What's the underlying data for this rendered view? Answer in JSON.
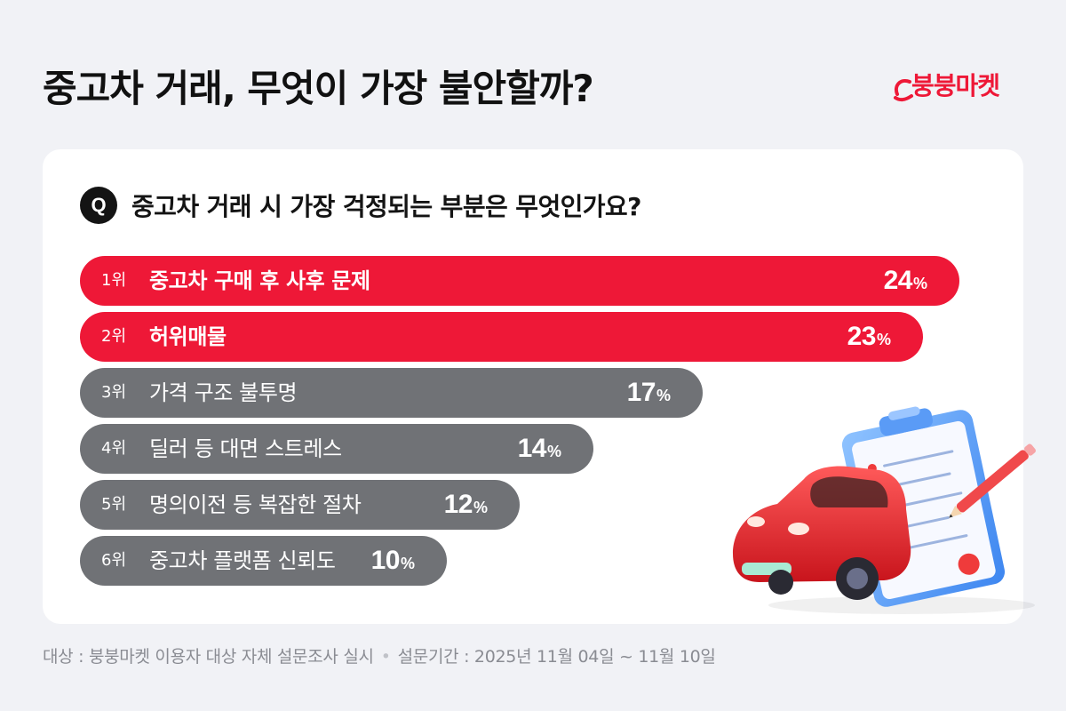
{
  "header": {
    "title": "중고차 거래, 무엇이 가장 불안할까?",
    "brand": "붕붕마켓"
  },
  "question": {
    "badge": "Q",
    "text": "중고차 거래 시 가장 걱정되는 부분은 무엇인가요?"
  },
  "colors": {
    "highlight": "#ee1837",
    "neutral": "#707276",
    "background": "#f1f2f6",
    "card": "#ffffff"
  },
  "chart_data": {
    "type": "bar",
    "orientation": "horizontal",
    "title": "중고차 거래 시 가장 걱정되는 부분은 무엇인가요?",
    "unit": "%",
    "xlim": [
      0,
      24
    ],
    "bars": [
      {
        "rank": "1위",
        "label": "중고차 구매 후 사후 문제",
        "value": 24,
        "highlight": true
      },
      {
        "rank": "2위",
        "label": "허위매물",
        "value": 23,
        "highlight": true
      },
      {
        "rank": "3위",
        "label": "가격 구조 불투명",
        "value": 17,
        "highlight": false
      },
      {
        "rank": "4위",
        "label": "딜러 등 대면 스트레스",
        "value": 14,
        "highlight": false
      },
      {
        "rank": "5위",
        "label": "명의이전 등 복잡한 절차",
        "value": 12,
        "highlight": false
      },
      {
        "rank": "6위",
        "label": "중고차 플랫폼 신뢰도",
        "value": 10,
        "highlight": false
      }
    ]
  },
  "footnote": {
    "target": "대상 : 붕붕마켓 이용자 대상 자체 설문조사 실시",
    "period": "설문기간 : 2025년 11월 04일 ~ 11월 10일"
  }
}
